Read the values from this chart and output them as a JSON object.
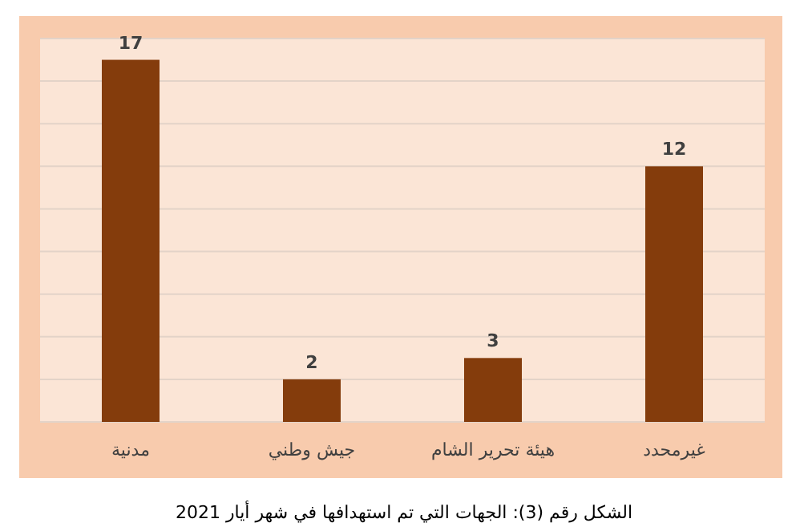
{
  "chart_data": {
    "type": "bar",
    "categories": [
      "مدنية",
      "جيش وطني",
      "هيئة تحرير الشام",
      "غيرمحدد"
    ],
    "values": [
      17,
      2,
      3,
      12
    ],
    "color": "#843c0c",
    "data_labels": true,
    "ylim": [
      0,
      18
    ],
    "yticks": [
      {
        "value": 0,
        "label": null
      },
      {
        "value": 2,
        "label": null
      },
      {
        "value": 4,
        "label": null
      },
      {
        "value": 6,
        "label": null
      },
      {
        "value": 8,
        "label": null
      },
      {
        "value": 10,
        "label": null
      },
      {
        "value": 12,
        "label": null
      },
      {
        "value": 14,
        "label": null
      },
      {
        "value": 16,
        "label": null
      },
      {
        "value": 18,
        "label": null
      }
    ],
    "grid": "y",
    "tick_labels": "x",
    "annotations": [
      "الشكل رقم (3): الجهات التي تم استهدافها في شهر أيار 2021"
    ]
  }
}
